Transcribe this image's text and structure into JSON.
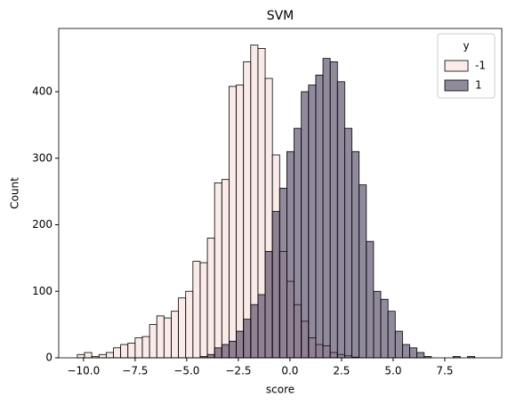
{
  "chart_data": {
    "type": "histogram",
    "title": "SVM",
    "x_label": "score",
    "y_label": "Count",
    "bins": [
      -10.3,
      -9.95,
      -9.6,
      -9.25,
      -8.9,
      -8.55,
      -8.2,
      -7.85,
      -7.5,
      -7.15,
      -6.8,
      -6.45,
      -6.1,
      -5.75,
      -5.4,
      -5.05,
      -4.7,
      -4.35,
      -4,
      -3.65,
      -3.3,
      -2.95,
      -2.6,
      -2.25,
      -1.9,
      -1.55,
      -1.2,
      -0.85,
      -0.5,
      -0.15,
      0.2,
      0.55,
      0.9,
      1.25,
      1.6,
      1.95,
      2.3,
      2.65,
      3,
      3.35,
      3.7,
      4.05,
      4.4,
      4.75,
      5.1,
      5.45,
      5.8,
      6.15,
      6.5,
      6.85,
      7.2,
      7.55,
      7.9,
      8.25,
      8.6,
      8.95
    ],
    "series": [
      {
        "name": "-1",
        "color": "#f5d8d1",
        "values": [
          5,
          8,
          2,
          5,
          8,
          15,
          20,
          22,
          30,
          32,
          50,
          63,
          60,
          70,
          90,
          100,
          145,
          143,
          180,
          263,
          268,
          408,
          410,
          445,
          470,
          465,
          420,
          305,
          160,
          115,
          80,
          55,
          30,
          20,
          18,
          8,
          5,
          3,
          1,
          0,
          0,
          0,
          0,
          0,
          0,
          0,
          0,
          0,
          0,
          0,
          0,
          0,
          0,
          0,
          0
        ]
      },
      {
        "name": "1",
        "color": "#23153b",
        "values": [
          0,
          0,
          0,
          0,
          0,
          0,
          0,
          0,
          0,
          0,
          0,
          0,
          0,
          0,
          0,
          0,
          0,
          2,
          5,
          15,
          20,
          25,
          40,
          58,
          80,
          95,
          160,
          220,
          255,
          310,
          345,
          400,
          410,
          425,
          450,
          445,
          415,
          345,
          310,
          260,
          175,
          100,
          88,
          70,
          40,
          20,
          15,
          8,
          2,
          0,
          0,
          0,
          2,
          0,
          2
        ]
      }
    ],
    "legend_title": "y",
    "legend_loc": "upper right",
    "fill_opacity": 0.5,
    "xlim": [
      -11.2,
      10.26
    ],
    "ylim": [
      0,
      495
    ],
    "xticks": [
      {
        "value": -10,
        "label": "−10.0"
      },
      {
        "value": -7.5,
        "label": "−7.5"
      },
      {
        "value": -5,
        "label": "−5.0"
      },
      {
        "value": -2.5,
        "label": "−2.5"
      },
      {
        "value": 0,
        "label": "0.0"
      },
      {
        "value": 2.5,
        "label": "2.5"
      },
      {
        "value": 5,
        "label": "5.0"
      },
      {
        "value": 7.5,
        "label": "7.5"
      }
    ],
    "yticks": [
      0,
      100,
      200,
      300,
      400
    ]
  }
}
